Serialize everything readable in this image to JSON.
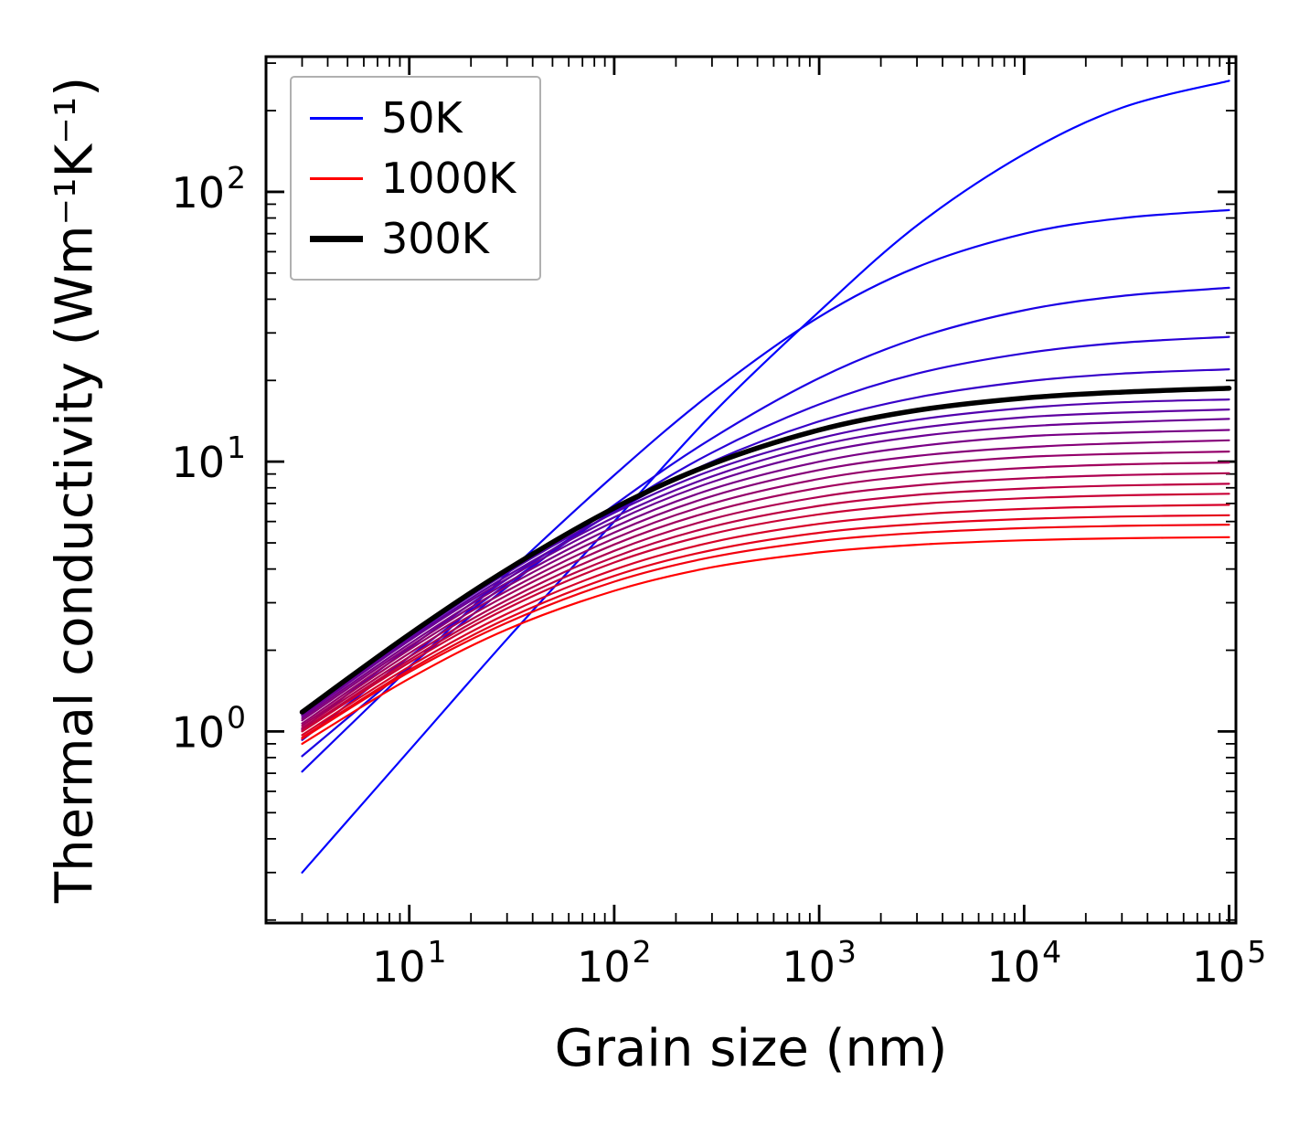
{
  "figure": {
    "xlabel": "Grain size (nm)",
    "ylabel": "Thermal conductivity (Wm⁻¹K⁻¹)",
    "background": "#ffffff",
    "spine_color": "#000000"
  },
  "legend": {
    "position": "upper-left",
    "items": [
      {
        "label": "50K",
        "color": "#0000ff",
        "linewidth": 3
      },
      {
        "label": "1000K",
        "color": "#ff0000",
        "linewidth": 3
      },
      {
        "label": "300K",
        "color": "#000000",
        "linewidth": 7
      }
    ]
  },
  "chart_data": {
    "type": "line",
    "title": "",
    "xlabel": "Grain size (nm)",
    "ylabel": "Thermal conductivity (Wm⁻¹K⁻¹)",
    "xscale": "log",
    "yscale": "log",
    "xlim": [
      2.0,
      108000
    ],
    "ylim": [
      0.195,
      317
    ],
    "x_tick_exponents": [
      1,
      2,
      3,
      4,
      5
    ],
    "y_tick_exponents": [
      0,
      1,
      2
    ],
    "grid": false,
    "legend_note": "curves are temperatures from 50K (blue) to 1000K (red) in 50K steps; 300K drawn thick black",
    "x": [
      3,
      10,
      30,
      100,
      300,
      1000,
      3000,
      10000,
      30000,
      100000
    ],
    "series": [
      {
        "name": "50K",
        "temperature": 50,
        "color": "#0000ff",
        "emphasis": false,
        "values": [
          0.3,
          0.85,
          2.2,
          6.0,
          15.0,
          36.0,
          75.0,
          138,
          205,
          258
        ]
      },
      {
        "name": "100K",
        "temperature": 100,
        "color": "#0d00f2",
        "emphasis": false,
        "values": [
          0.71,
          1.72,
          3.84,
          8.91,
          18.0,
          34.4,
          52.6,
          69.9,
          79.9,
          85.6
        ]
      },
      {
        "name": "150K",
        "temperature": 150,
        "color": "#1b00e4",
        "emphasis": false,
        "values": [
          0.81,
          1.74,
          3.43,
          6.9,
          12.2,
          20.4,
          28.7,
          36.4,
          41.1,
          44.1
        ]
      },
      {
        "name": "200K",
        "temperature": 200,
        "color": "#2800d7",
        "emphasis": false,
        "values": [
          0.93,
          1.89,
          3.52,
          6.59,
          10.8,
          16.3,
          21.2,
          25.2,
          27.6,
          29.0
        ]
      },
      {
        "name": "250K",
        "temperature": 250,
        "color": "#3600c9",
        "emphasis": false,
        "values": [
          1.02,
          2.04,
          3.67,
          6.51,
          10.0,
          14.1,
          17.3,
          19.8,
          21.2,
          22.0
        ]
      },
      {
        "name": "300K",
        "temperature": 300,
        "color": "#000000",
        "emphasis": true,
        "values": [
          1.18,
          2.29,
          3.98,
          6.73,
          9.8,
          13.1,
          15.5,
          17.2,
          18.1,
          18.7
        ]
      },
      {
        "name": "350K",
        "temperature": 350,
        "color": "#5100ae",
        "emphasis": false,
        "values": [
          1.17,
          2.24,
          3.87,
          6.46,
          9.29,
          12.2,
          14.3,
          15.8,
          16.6,
          17.0
        ]
      },
      {
        "name": "400K",
        "temperature": 400,
        "color": "#5e00a1",
        "emphasis": false,
        "values": [
          1.15,
          2.2,
          3.77,
          6.22,
          8.82,
          11.5,
          13.3,
          14.6,
          15.2,
          15.6
        ]
      },
      {
        "name": "450K",
        "temperature": 450,
        "color": "#6b0094",
        "emphasis": false,
        "values": [
          1.14,
          2.17,
          3.68,
          6.0,
          8.4,
          10.8,
          12.4,
          13.5,
          14.0,
          14.4
        ]
      },
      {
        "name": "500K",
        "temperature": 500,
        "color": "#790086",
        "emphasis": false,
        "values": [
          1.12,
          2.11,
          3.56,
          5.73,
          7.91,
          10.0,
          11.4,
          12.4,
          12.8,
          13.1
        ]
      },
      {
        "name": "550K",
        "temperature": 550,
        "color": "#860079",
        "emphasis": false,
        "values": [
          1.1,
          2.06,
          3.45,
          5.46,
          7.45,
          9.31,
          10.5,
          11.3,
          11.7,
          12.0
        ]
      },
      {
        "name": "600K",
        "temperature": 600,
        "color": "#94006b",
        "emphasis": false,
        "values": [
          1.07,
          2.01,
          3.32,
          5.19,
          6.99,
          8.63,
          9.67,
          10.4,
          10.7,
          10.9
        ]
      },
      {
        "name": "650K",
        "temperature": 650,
        "color": "#a1005e",
        "emphasis": false,
        "values": [
          1.05,
          1.95,
          3.2,
          4.93,
          6.55,
          8.0,
          8.89,
          9.47,
          9.77,
          9.93
        ]
      },
      {
        "name": "700K",
        "temperature": 700,
        "color": "#ae0051",
        "emphasis": false,
        "values": [
          1.03,
          1.89,
          3.07,
          4.67,
          6.13,
          7.4,
          8.17,
          8.67,
          8.92,
          9.06
        ]
      },
      {
        "name": "750K",
        "temperature": 750,
        "color": "#bc0043",
        "emphasis": false,
        "values": [
          1.01,
          1.84,
          2.96,
          4.43,
          5.74,
          6.86,
          7.53,
          7.95,
          8.16,
          8.28
        ]
      },
      {
        "name": "800K",
        "temperature": 800,
        "color": "#c90036",
        "emphasis": false,
        "values": [
          1.0,
          1.8,
          2.86,
          4.23,
          5.4,
          6.38,
          6.96,
          7.32,
          7.5,
          7.6
        ]
      },
      {
        "name": "850K",
        "temperature": 850,
        "color": "#d70028",
        "emphasis": false,
        "values": [
          0.97,
          1.74,
          2.73,
          3.98,
          5.03,
          5.88,
          6.37,
          6.68,
          6.83,
          6.92
        ]
      },
      {
        "name": "900K",
        "temperature": 900,
        "color": "#e4001b",
        "emphasis": false,
        "values": [
          0.95,
          1.69,
          2.62,
          3.77,
          4.7,
          5.45,
          5.87,
          6.13,
          6.26,
          6.33
        ]
      },
      {
        "name": "950K",
        "temperature": 950,
        "color": "#f2000d",
        "emphasis": false,
        "values": [
          0.94,
          1.66,
          2.53,
          3.59,
          4.43,
          5.08,
          5.44,
          5.67,
          5.78,
          5.84
        ]
      },
      {
        "name": "1000K",
        "temperature": 1000,
        "color": "#ff0000",
        "emphasis": false,
        "values": [
          0.9,
          1.57,
          2.39,
          3.32,
          4.06,
          4.61,
          4.92,
          5.11,
          5.2,
          5.25
        ]
      }
    ]
  }
}
